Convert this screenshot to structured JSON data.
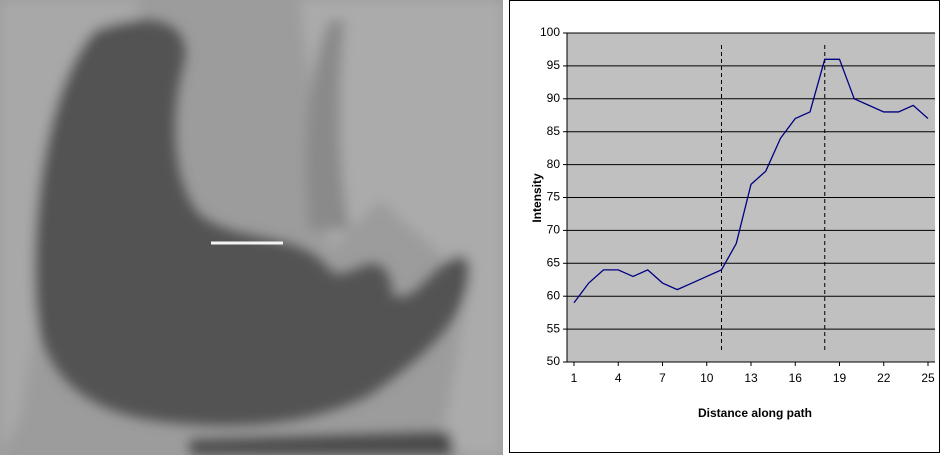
{
  "chart_data": {
    "type": "line",
    "x_label": "Distance along path",
    "y_label": "Intensity",
    "x": [
      1,
      2,
      3,
      4,
      5,
      6,
      7,
      8,
      9,
      10,
      11,
      12,
      13,
      14,
      15,
      16,
      17,
      18,
      19,
      20,
      21,
      22,
      23,
      24,
      25
    ],
    "series": [
      {
        "color": "#000080",
        "values": [
          59,
          62,
          64,
          64,
          63,
          64,
          62,
          61,
          62,
          63,
          64,
          68,
          77,
          79,
          84,
          87,
          88,
          96,
          96,
          90,
          89,
          88,
          88,
          89,
          87
        ]
      }
    ],
    "xlim": [
      1,
      25
    ],
    "xticks": [
      1,
      4,
      7,
      10,
      13,
      16,
      19,
      22,
      25
    ],
    "ylim": [
      50,
      100
    ],
    "yticks": [
      50,
      55,
      60,
      65,
      70,
      75,
      80,
      85,
      90,
      95,
      100
    ],
    "vlines": [
      11,
      18
    ],
    "grid": true,
    "plot_background": "#c0c0c0"
  }
}
